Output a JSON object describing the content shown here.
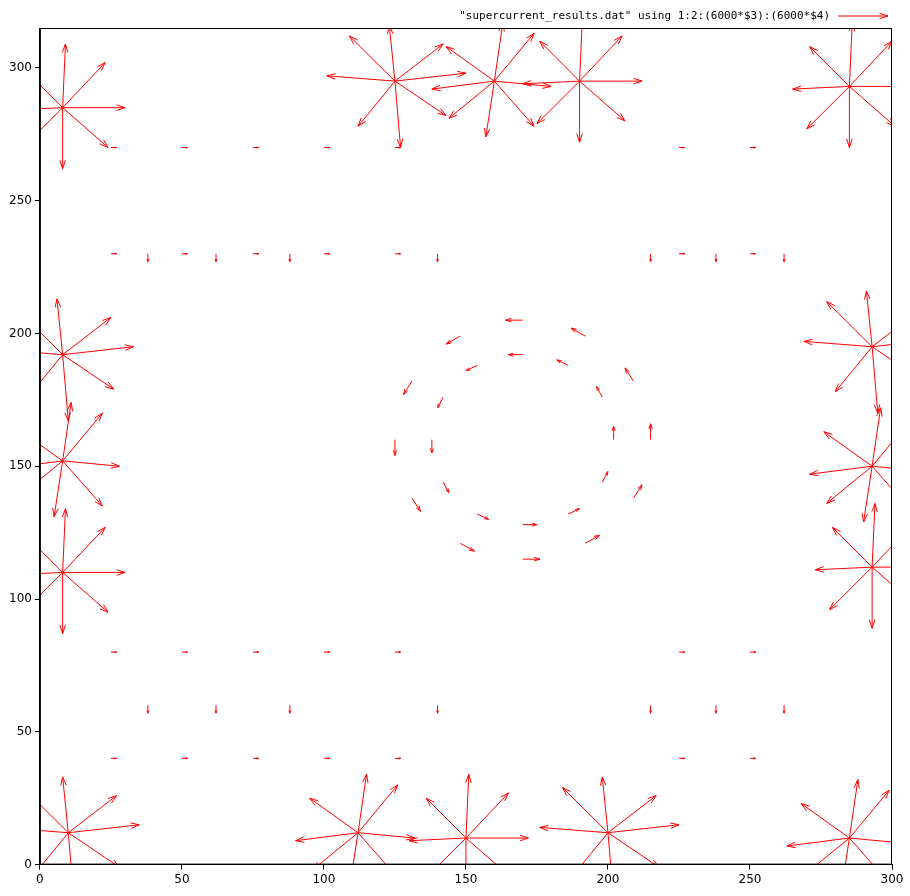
{
  "chart_data": {
    "type": "vector_field",
    "xlim": [
      0,
      300
    ],
    "ylim": [
      0,
      315
    ],
    "xticks": [
      0,
      50,
      100,
      150,
      200,
      250,
      300
    ],
    "yticks": [
      0,
      50,
      100,
      150,
      200,
      250,
      300
    ],
    "grid": false,
    "legend": "top right",
    "series": [
      {
        "name": "\"supercurrent_results.dat\" using 1:2:(6000*$3):(6000*$4)",
        "color": "#ff0000",
        "vectors": [
          [
            8,
            285,
            22,
            0
          ],
          [
            8,
            285,
            15,
            17
          ],
          [
            8,
            285,
            1,
            24
          ],
          [
            8,
            285,
            -14,
            15
          ],
          [
            8,
            285,
            -20,
            -1
          ],
          [
            8,
            285,
            -15,
            -16
          ],
          [
            8,
            285,
            0,
            -23
          ],
          [
            8,
            285,
            16,
            -15
          ],
          [
            8,
            192,
            25,
            3
          ],
          [
            8,
            192,
            17,
            14
          ],
          [
            8,
            192,
            -2,
            21
          ],
          [
            8,
            192,
            -16,
            17
          ],
          [
            8,
            192,
            -24,
            2
          ],
          [
            8,
            192,
            -13,
            -17
          ],
          [
            8,
            192,
            2,
            -25
          ],
          [
            8,
            192,
            18,
            -13
          ],
          [
            8,
            152,
            20,
            -2
          ],
          [
            8,
            152,
            14,
            18
          ],
          [
            8,
            152,
            3,
            22
          ],
          [
            8,
            152,
            -17,
            13
          ],
          [
            8,
            152,
            -22,
            -3
          ],
          [
            8,
            152,
            -16,
            -14
          ],
          [
            8,
            152,
            -3,
            -21
          ],
          [
            8,
            152,
            14,
            -17
          ],
          [
            8,
            110,
            22,
            0
          ],
          [
            8,
            110,
            15,
            17
          ],
          [
            8,
            110,
            1,
            24
          ],
          [
            8,
            110,
            -14,
            15
          ],
          [
            8,
            110,
            -20,
            -1
          ],
          [
            8,
            110,
            -15,
            -16
          ],
          [
            8,
            110,
            0,
            -23
          ],
          [
            8,
            110,
            16,
            -15
          ],
          [
            10,
            12,
            25,
            3
          ],
          [
            10,
            12,
            17,
            14
          ],
          [
            10,
            12,
            -2,
            21
          ],
          [
            10,
            12,
            -16,
            17
          ],
          [
            10,
            12,
            -24,
            2
          ],
          [
            10,
            12,
            -13,
            -17
          ],
          [
            10,
            12,
            2,
            -25
          ],
          [
            10,
            12,
            18,
            -13
          ],
          [
            112,
            12,
            20,
            -2
          ],
          [
            112,
            12,
            14,
            18
          ],
          [
            112,
            12,
            3,
            22
          ],
          [
            112,
            12,
            -17,
            13
          ],
          [
            112,
            12,
            -22,
            -3
          ],
          [
            112,
            12,
            -16,
            -14
          ],
          [
            112,
            12,
            -3,
            -21
          ],
          [
            112,
            12,
            14,
            -17
          ],
          [
            150,
            10,
            22,
            0
          ],
          [
            150,
            10,
            15,
            17
          ],
          [
            150,
            10,
            1,
            24
          ],
          [
            150,
            10,
            -14,
            15
          ],
          [
            150,
            10,
            -20,
            -1
          ],
          [
            150,
            10,
            -15,
            -16
          ],
          [
            150,
            10,
            0,
            -23
          ],
          [
            150,
            10,
            16,
            -15
          ],
          [
            200,
            12,
            25,
            3
          ],
          [
            200,
            12,
            17,
            14
          ],
          [
            200,
            12,
            -2,
            21
          ],
          [
            200,
            12,
            -16,
            17
          ],
          [
            200,
            12,
            -24,
            2
          ],
          [
            200,
            12,
            -13,
            -17
          ],
          [
            200,
            12,
            2,
            -25
          ],
          [
            200,
            12,
            18,
            -13
          ],
          [
            285,
            10,
            20,
            -2
          ],
          [
            285,
            10,
            14,
            18
          ],
          [
            285,
            10,
            3,
            22
          ],
          [
            285,
            10,
            -17,
            13
          ],
          [
            285,
            10,
            -22,
            -3
          ],
          [
            285,
            10,
            -16,
            -14
          ],
          [
            285,
            10,
            -3,
            -21
          ],
          [
            285,
            10,
            14,
            -17
          ],
          [
            285,
            293,
            22,
            0
          ],
          [
            285,
            293,
            15,
            17
          ],
          [
            285,
            293,
            1,
            24
          ],
          [
            285,
            293,
            -14,
            15
          ],
          [
            285,
            293,
            -20,
            -1
          ],
          [
            285,
            293,
            -15,
            -16
          ],
          [
            285,
            293,
            0,
            -23
          ],
          [
            285,
            293,
            16,
            -15
          ],
          [
            293,
            195,
            25,
            3
          ],
          [
            293,
            195,
            17,
            14
          ],
          [
            293,
            195,
            -2,
            21
          ],
          [
            293,
            195,
            -16,
            17
          ],
          [
            293,
            195,
            -24,
            2
          ],
          [
            293,
            195,
            -13,
            -17
          ],
          [
            293,
            195,
            2,
            -25
          ],
          [
            293,
            195,
            18,
            -13
          ],
          [
            293,
            150,
            20,
            -2
          ],
          [
            293,
            150,
            14,
            18
          ],
          [
            293,
            150,
            3,
            22
          ],
          [
            293,
            150,
            -17,
            13
          ],
          [
            293,
            150,
            -22,
            -3
          ],
          [
            293,
            150,
            -16,
            -14
          ],
          [
            293,
            150,
            -3,
            -21
          ],
          [
            293,
            150,
            14,
            -17
          ],
          [
            293,
            112,
            22,
            0
          ],
          [
            293,
            112,
            15,
            17
          ],
          [
            293,
            112,
            1,
            24
          ],
          [
            293,
            112,
            -14,
            15
          ],
          [
            293,
            112,
            -20,
            -1
          ],
          [
            293,
            112,
            -15,
            -16
          ],
          [
            293,
            112,
            0,
            -23
          ],
          [
            293,
            112,
            16,
            -15
          ],
          [
            125,
            295,
            25,
            3
          ],
          [
            125,
            295,
            17,
            14
          ],
          [
            125,
            295,
            -2,
            21
          ],
          [
            125,
            295,
            -16,
            17
          ],
          [
            125,
            295,
            -24,
            2
          ],
          [
            125,
            295,
            -13,
            -17
          ],
          [
            125,
            295,
            2,
            -25
          ],
          [
            125,
            295,
            18,
            -13
          ],
          [
            160,
            295,
            20,
            -2
          ],
          [
            160,
            295,
            14,
            18
          ],
          [
            160,
            295,
            3,
            22
          ],
          [
            160,
            295,
            -17,
            13
          ],
          [
            160,
            295,
            -22,
            -3
          ],
          [
            160,
            295,
            -16,
            -14
          ],
          [
            160,
            295,
            -3,
            -21
          ],
          [
            160,
            295,
            14,
            -17
          ],
          [
            190,
            295,
            22,
            0
          ],
          [
            190,
            295,
            15,
            17
          ],
          [
            190,
            295,
            1,
            24
          ],
          [
            190,
            295,
            -14,
            15
          ],
          [
            190,
            295,
            -20,
            -1
          ],
          [
            190,
            295,
            -15,
            -16
          ],
          [
            190,
            295,
            0,
            -23
          ],
          [
            190,
            295,
            16,
            -15
          ],
          [
            215,
            160,
            0,
            6
          ],
          [
            209,
            182,
            -3,
            5
          ],
          [
            192,
            199,
            -5,
            3
          ],
          [
            170,
            205,
            -6,
            0
          ],
          [
            148,
            199,
            -5,
            -3
          ],
          [
            131,
            182,
            -3,
            -5
          ],
          [
            125,
            160,
            0,
            -6
          ],
          [
            131,
            138,
            3,
            -5
          ],
          [
            148,
            121,
            5,
            -3
          ],
          [
            170,
            115,
            6,
            0
          ],
          [
            192,
            121,
            5,
            3
          ],
          [
            209,
            138,
            3,
            5
          ],
          [
            202,
            160,
            0,
            5
          ],
          [
            198,
            176,
            -2,
            4
          ],
          [
            186,
            188,
            -4,
            2
          ],
          [
            170,
            192,
            -5,
            0
          ],
          [
            154,
            188,
            -4,
            -2
          ],
          [
            142,
            176,
            -2,
            -4
          ],
          [
            138,
            160,
            0,
            -5
          ],
          [
            142,
            144,
            2,
            -4
          ],
          [
            154,
            132,
            4,
            -2
          ],
          [
            170,
            128,
            5,
            0
          ],
          [
            186,
            132,
            4,
            2
          ],
          [
            198,
            144,
            2,
            4
          ],
          [
            25,
            40,
            2,
            0
          ],
          [
            50,
            40,
            2,
            0
          ],
          [
            75,
            40,
            2,
            0
          ],
          [
            100,
            40,
            2,
            0
          ],
          [
            125,
            40,
            2,
            0
          ],
          [
            225,
            40,
            2,
            0
          ],
          [
            250,
            40,
            2,
            0
          ],
          [
            25,
            80,
            2,
            0
          ],
          [
            50,
            80,
            2,
            0
          ],
          [
            75,
            80,
            2,
            0
          ],
          [
            100,
            80,
            2,
            0
          ],
          [
            125,
            80,
            2,
            0
          ],
          [
            225,
            80,
            2,
            0
          ],
          [
            250,
            80,
            2,
            0
          ],
          [
            25,
            230,
            2,
            0
          ],
          [
            50,
            230,
            2,
            0
          ],
          [
            75,
            230,
            2,
            0
          ],
          [
            100,
            230,
            2,
            0
          ],
          [
            125,
            230,
            2,
            0
          ],
          [
            225,
            230,
            2,
            0
          ],
          [
            250,
            230,
            2,
            0
          ],
          [
            25,
            270,
            2,
            0
          ],
          [
            50,
            270,
            2,
            0
          ],
          [
            75,
            270,
            2,
            0
          ],
          [
            100,
            270,
            2,
            0
          ],
          [
            125,
            270,
            2,
            0
          ],
          [
            225,
            270,
            2,
            0
          ],
          [
            250,
            270,
            2,
            0
          ],
          [
            38,
            60,
            0,
            -3
          ],
          [
            62,
            60,
            0,
            -3
          ],
          [
            88,
            60,
            0,
            -3
          ],
          [
            140,
            60,
            0,
            -3
          ],
          [
            215,
            60,
            0,
            -3
          ],
          [
            238,
            60,
            0,
            -3
          ],
          [
            262,
            60,
            0,
            -3
          ],
          [
            38,
            230,
            0,
            -3
          ],
          [
            62,
            230,
            0,
            -3
          ],
          [
            88,
            230,
            0,
            -3
          ],
          [
            140,
            230,
            0,
            -3
          ],
          [
            215,
            230,
            0,
            -3
          ],
          [
            238,
            230,
            0,
            -3
          ],
          [
            262,
            230,
            0,
            -3
          ]
        ]
      }
    ]
  }
}
